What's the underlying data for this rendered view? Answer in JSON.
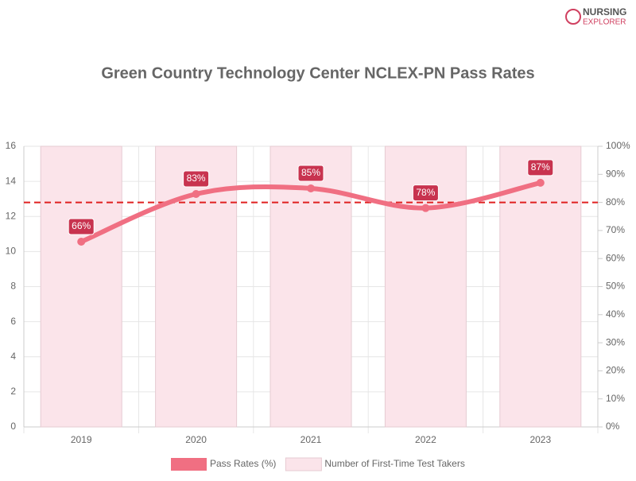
{
  "logo": {
    "line1": "NURSING",
    "line2": "EXPLORER"
  },
  "chart_data": {
    "type": "bar-line",
    "title": "Green Country Technology Center NCLEX-PN Pass Rates",
    "categories": [
      "2019",
      "2020",
      "2021",
      "2022",
      "2023"
    ],
    "series": [
      {
        "name": "Pass Rates (%)",
        "type": "line",
        "axis": "y2",
        "color": "#f06f82",
        "values": [
          66,
          83,
          85,
          78,
          87
        ],
        "value_labels": [
          "66%",
          "83%",
          "85%",
          "78%",
          "87%"
        ]
      },
      {
        "name": "Number of First-Time Test Takers",
        "type": "bar",
        "axis": "y",
        "color": "#fbe4ea",
        "values": [
          16,
          16,
          16,
          16,
          16
        ]
      }
    ],
    "reference_line": {
      "value": 80,
      "axis": "y2",
      "color": "#e02020"
    },
    "ylim": [
      0,
      16
    ],
    "yticks": [
      0,
      2,
      4,
      6,
      8,
      10,
      12,
      14,
      16
    ],
    "y2lim": [
      0,
      100
    ],
    "y2ticks": [
      {
        "value": 0,
        "label": "0%"
      },
      {
        "value": 10,
        "label": "10%"
      },
      {
        "value": 20,
        "label": "20%"
      },
      {
        "value": 30,
        "label": "30%"
      },
      {
        "value": 40,
        "label": "40%"
      },
      {
        "value": 50,
        "label": "50%"
      },
      {
        "value": 60,
        "label": "60%"
      },
      {
        "value": 70,
        "label": "70%"
      },
      {
        "value": 80,
        "label": "80%"
      },
      {
        "value": 90,
        "label": "90%"
      },
      {
        "value": 100,
        "label": "100%"
      }
    ],
    "grid": true
  }
}
